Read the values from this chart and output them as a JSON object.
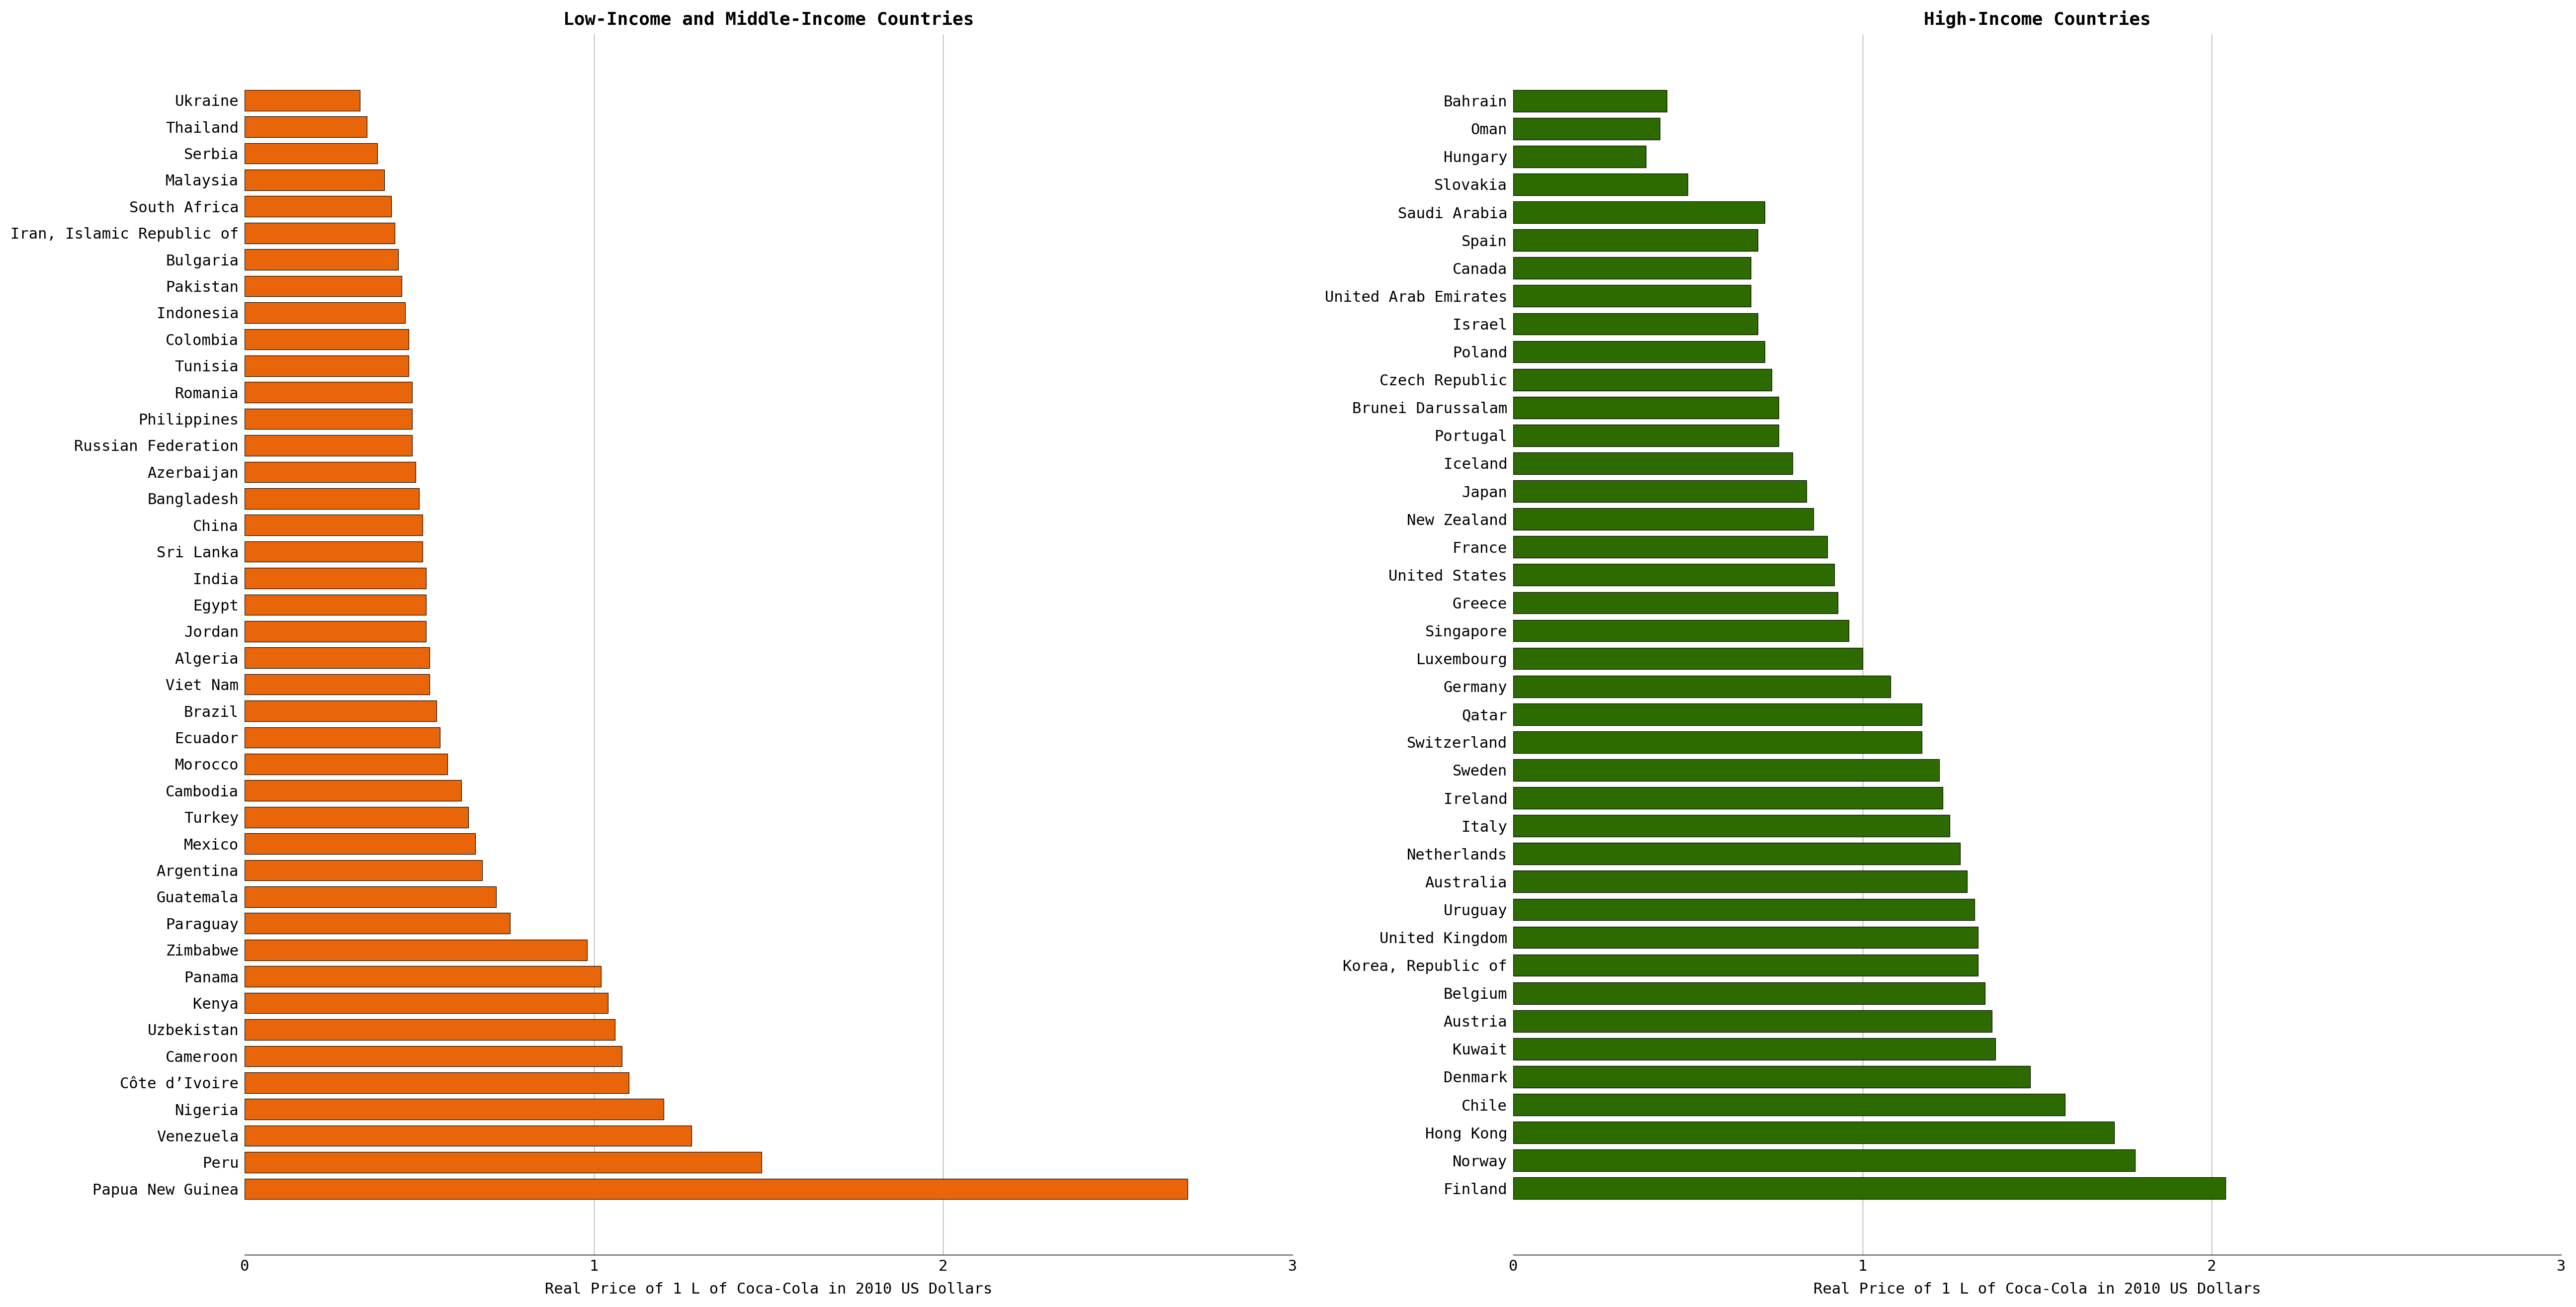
{
  "low_income_countries": [
    "Ukraine",
    "Thailand",
    "Serbia",
    "Malaysia",
    "South Africa",
    "Iran, Islamic Republic of",
    "Bulgaria",
    "Pakistan",
    "Indonesia",
    "Colombia",
    "Tunisia",
    "Romania",
    "Philippines",
    "Russian Federation",
    "Azerbaijan",
    "Bangladesh",
    "China",
    "Sri Lanka",
    "India",
    "Egypt",
    "Jordan",
    "Algeria",
    "Viet Nam",
    "Brazil",
    "Ecuador",
    "Morocco",
    "Cambodia",
    "Turkey",
    "Mexico",
    "Argentina",
    "Guatemala",
    "Paraguay",
    "Zimbabwe",
    "Panama",
    "Kenya",
    "Uzbekistan",
    "Cameroon",
    "Côte d’Ivoire",
    "Nigeria",
    "Venezuela",
    "Peru",
    "Papua New Guinea"
  ],
  "low_income_values": [
    0.33,
    0.35,
    0.38,
    0.4,
    0.42,
    0.43,
    0.44,
    0.45,
    0.46,
    0.47,
    0.47,
    0.48,
    0.48,
    0.48,
    0.49,
    0.5,
    0.51,
    0.51,
    0.52,
    0.52,
    0.52,
    0.53,
    0.53,
    0.55,
    0.56,
    0.58,
    0.62,
    0.64,
    0.66,
    0.68,
    0.72,
    0.76,
    0.98,
    1.02,
    1.04,
    1.06,
    1.08,
    1.1,
    1.2,
    1.28,
    1.48,
    2.7
  ],
  "high_income_countries": [
    "Bahrain",
    "Oman",
    "Hungary",
    "Slovakia",
    "Saudi Arabia",
    "Spain",
    "Canada",
    "United Arab Emirates",
    "Israel",
    "Poland",
    "Czech Republic",
    "Brunei Darussalam",
    "Portugal",
    "Iceland",
    "Japan",
    "New Zealand",
    "France",
    "United States",
    "Greece",
    "Singapore",
    "Luxembourg",
    "Germany",
    "Qatar",
    "Switzerland",
    "Sweden",
    "Ireland",
    "Italy",
    "Netherlands",
    "Australia",
    "Uruguay",
    "United Kingdom",
    "Korea, Republic of",
    "Belgium",
    "Austria",
    "Kuwait",
    "Denmark",
    "Chile",
    "Hong Kong",
    "Norway",
    "Finland"
  ],
  "high_income_values": [
    0.44,
    0.42,
    0.38,
    0.5,
    0.72,
    0.7,
    0.68,
    0.68,
    0.7,
    0.72,
    0.74,
    0.76,
    0.76,
    0.8,
    0.84,
    0.86,
    0.9,
    0.92,
    0.93,
    0.96,
    1.0,
    1.08,
    1.17,
    1.17,
    1.22,
    1.23,
    1.25,
    1.28,
    1.3,
    1.32,
    1.33,
    1.33,
    1.35,
    1.37,
    1.38,
    1.48,
    1.58,
    1.72,
    1.78,
    2.04
  ],
  "low_income_color": "#E8650A",
  "high_income_color": "#2D6A00",
  "low_income_title": "Low-Income and Middle-Income Countries",
  "high_income_title": "High-Income Countries",
  "xlabel": "Real Price of 1 L of Coca-Cola in 2010 US Dollars",
  "xlim_low": [
    0,
    3
  ],
  "xlim_high": [
    0,
    3
  ],
  "xticks": [
    0,
    1,
    2,
    3
  ],
  "title_fontsize": 26,
  "label_fontsize": 22,
  "tick_fontsize": 22
}
